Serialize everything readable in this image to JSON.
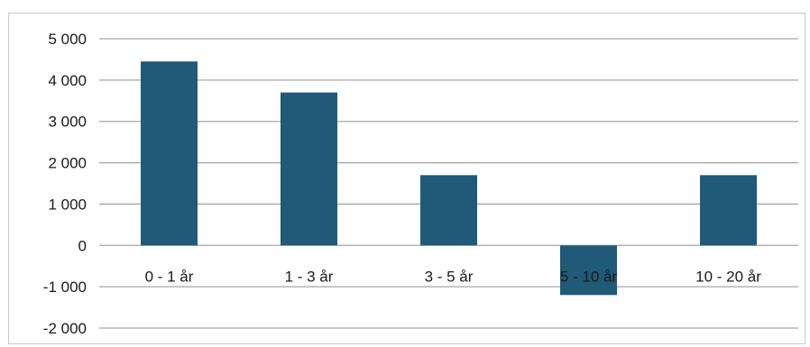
{
  "chart_data": {
    "type": "bar",
    "categories": [
      "0 - 1 år",
      "1 - 3 år",
      "3 - 5 år",
      "5 - 10 år",
      "10 - 20 år"
    ],
    "values": [
      4450,
      3700,
      1700,
      -1200,
      1700
    ],
    "ylim": [
      -2000,
      5000
    ],
    "yticks": [
      5000,
      4000,
      3000,
      2000,
      1000,
      0,
      -1000,
      -2000
    ],
    "ytick_labels": [
      "5 000",
      "4 000",
      "3 000",
      "2 000",
      "1 000",
      "0",
      "-1 000",
      "-2 000"
    ],
    "grid": true,
    "bar_color": "#1f5a78",
    "grid_color": "#a6a6a6"
  }
}
